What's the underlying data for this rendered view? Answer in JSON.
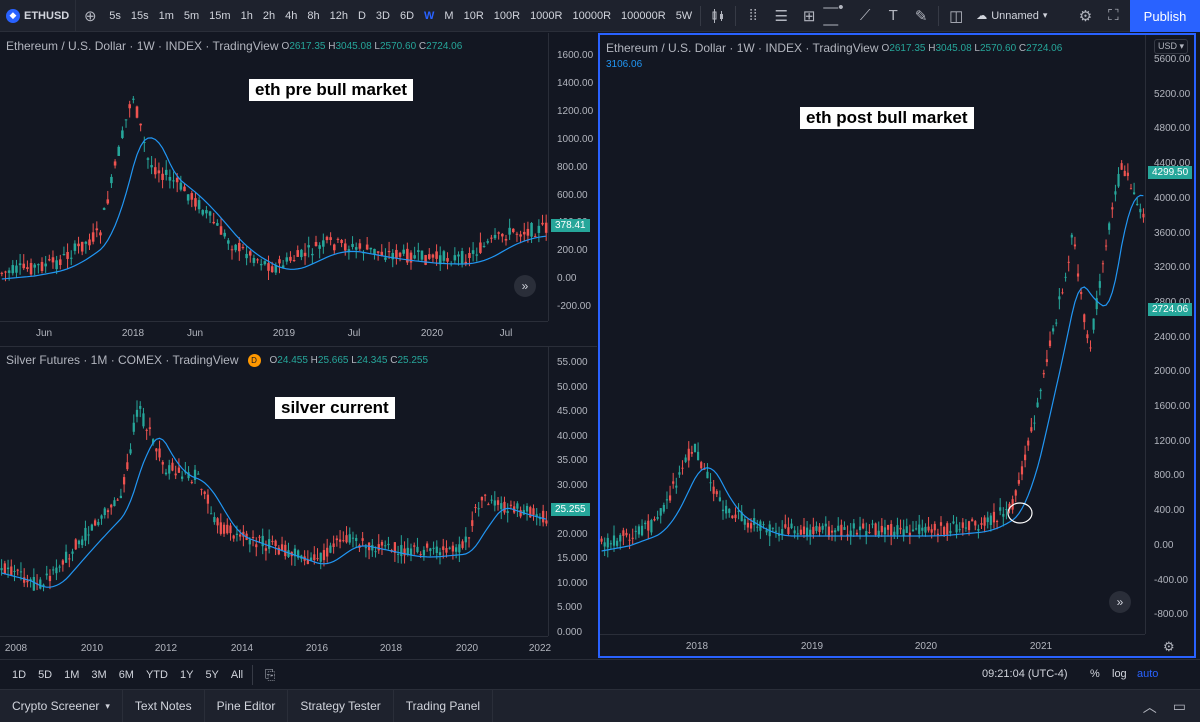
{
  "toolbar": {
    "symbol": "ETHUSD",
    "symbol_logo": "◆",
    "timeframes": [
      "5s",
      "15s",
      "1m",
      "5m",
      "15m",
      "1h",
      "2h",
      "4h",
      "8h",
      "12h",
      "D",
      "3D",
      "6D",
      "W",
      "M",
      "10R",
      "100R",
      "1000R",
      "10000R",
      "100000R",
      "5W"
    ],
    "active_timeframe": "W",
    "layout_name": "Unnamed",
    "publish_label": "Publish"
  },
  "pane_tl": {
    "title": "Ethereum / U.S. Dollar · 1W · INDEX · TradingView",
    "o_label": "O",
    "o": "2617.35",
    "h_label": "H",
    "h": "3045.08",
    "l_label": "L",
    "l": "2570.60",
    "c_label": "C",
    "c": "2724.06",
    "annotation": "eth pre bull market",
    "price_ticks": [
      "1600.00",
      "1400.00",
      "1200.00",
      "1000.00",
      "800.00",
      "600.00",
      "400.00",
      "200.00",
      "0.00",
      "-200.00"
    ],
    "last_price": "378.41",
    "time_ticks": [
      "Jun",
      "2018",
      "Jun",
      "2019",
      "Jul",
      "2020",
      "Jul"
    ]
  },
  "pane_bl": {
    "title": "Silver Futures · 1M · COMEX · TradingView",
    "badge": "D",
    "o_label": "O",
    "o": "24.455",
    "h_label": "H",
    "h": "25.665",
    "l_label": "L",
    "l": "24.345",
    "c_label": "C",
    "c": "25.255",
    "annotation": "silver current",
    "price_ticks": [
      "55.000",
      "50.000",
      "45.000",
      "40.000",
      "35.000",
      "30.000",
      "25.000",
      "20.000",
      "15.000",
      "10.000",
      "5.000",
      "0.000"
    ],
    "last_price": "25.255",
    "time_ticks": [
      "2008",
      "2010",
      "2012",
      "2014",
      "2016",
      "2018",
      "2020",
      "2022"
    ]
  },
  "pane_r": {
    "title": "Ethereum / U.S. Dollar · 1W · INDEX · TradingView",
    "o_label": "O",
    "o": "2617.35",
    "h_label": "H",
    "h": "3045.08",
    "l_label": "L",
    "l": "2570.60",
    "c_label": "C",
    "c": "2724.06",
    "ma_value": "3106.06",
    "annotation": "eth post bull market",
    "currency": "USD",
    "price_ticks": [
      "5600.00",
      "5200.00",
      "4800.00",
      "4400.00",
      "4000.00",
      "3600.00",
      "3200.00",
      "2800.00",
      "2400.00",
      "2000.00",
      "1600.00",
      "1200.00",
      "800.00",
      "400.00",
      "0.00",
      "-400.00",
      "-800.00"
    ],
    "label_high": "4299.50",
    "label_last": "2724.06",
    "time_ticks": [
      "2018",
      "2019",
      "2020",
      "2021"
    ]
  },
  "rangebar": {
    "ranges": [
      "1D",
      "5D",
      "1M",
      "3M",
      "6M",
      "YTD",
      "1Y",
      "5Y",
      "All"
    ],
    "clock": "09:21:04 (UTC-4)",
    "pct": "%",
    "log": "log",
    "auto": "auto"
  },
  "bottombar": {
    "tabs": [
      "Crypto Screener",
      "Text Notes",
      "Pine Editor",
      "Strategy Tester",
      "Trading Panel"
    ]
  },
  "colors": {
    "up": "#26a69a",
    "down": "#ef5350",
    "ma": "#2196f3",
    "accent": "#2962ff"
  }
}
